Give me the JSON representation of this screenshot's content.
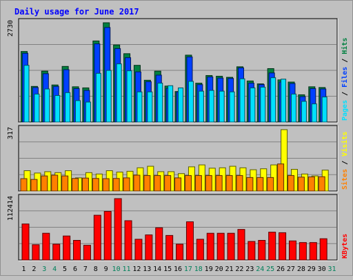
{
  "chart_data": {
    "type": "bar",
    "title": "Daily usage for June 2017",
    "categories": [
      "1",
      "2",
      "3",
      "4",
      "5",
      "6",
      "7",
      "8",
      "9",
      "10",
      "11",
      "12",
      "13",
      "14",
      "15",
      "16",
      "17",
      "18",
      "19",
      "20",
      "21",
      "22",
      "23",
      "24",
      "25",
      "26",
      "27",
      "28",
      "29",
      "30",
      "31"
    ],
    "weekend_days": [
      "3",
      "4",
      "10",
      "11",
      "17",
      "18",
      "24",
      "25",
      "31"
    ],
    "panels": [
      {
        "name": "hits-files-pages",
        "ymax": 2730,
        "ymax_label": "2730",
        "series": [
          {
            "name": "Hits",
            "color": "#008040",
            "values": [
              1940,
              980,
              1400,
              1020,
              1530,
              970,
              940,
              2230,
              2730,
              2120,
              1880,
              1560,
              1150,
              1400,
              990,
              840,
              1840,
              1070,
              1280,
              1260,
              1230,
              1520,
              1130,
              1050,
              1470,
              1160,
              1100,
              750,
              970,
              950,
              null
            ]
          },
          {
            "name": "Files",
            "color": "#0040ff",
            "values": [
              1890,
              950,
              1330,
              980,
              1440,
              920,
              870,
              2150,
              2600,
              2020,
              1770,
              1380,
              1110,
              1290,
              930,
              830,
              1790,
              1030,
              1240,
              1210,
              1200,
              1490,
              1070,
              1030,
              1350,
              1100,
              1060,
              700,
              920,
              910,
              null
            ]
          },
          {
            "name": "Pages",
            "color": "#00e0ff",
            "values": [
              1560,
              770,
              910,
              730,
              810,
              590,
              550,
              1340,
              1420,
              1600,
              1410,
              830,
              830,
              1070,
              1000,
              940,
              1120,
              850,
              870,
              850,
              830,
              1190,
              940,
              960,
              1220,
              1180,
              770,
              570,
              500,
              690,
              null
            ]
          }
        ],
        "legend": [
          "Pages",
          "Files",
          "Hits"
        ]
      },
      {
        "name": "visits-sites",
        "ymax": 317,
        "ymax_label": "317",
        "series": [
          {
            "name": "Visits",
            "color": "#ffff00",
            "values": [
              105,
              93,
              100,
              95,
              105,
              68,
              95,
              88,
              105,
              98,
              102,
              120,
              128,
              100,
              100,
              90,
              125,
              135,
              118,
              120,
              128,
              120,
              110,
              115,
              135,
              317,
              112,
              88,
              78,
              108,
              null
            ]
          },
          {
            "name": "Sites",
            "color": "#ff8000",
            "values": [
              64,
              60,
              78,
              82,
              78,
              65,
              67,
              65,
              64,
              65,
              68,
              82,
              80,
              80,
              80,
              68,
              80,
              80,
              80,
              80,
              80,
              80,
              70,
              70,
              70,
              140,
              80,
              72,
              73,
              74,
              null
            ]
          }
        ],
        "legend": [
          "Sites",
          "Visits"
        ]
      },
      {
        "name": "kbytes",
        "ymax": 112414,
        "ymax_label": "112414",
        "series": [
          {
            "name": "KBytes",
            "color": "#ff0000",
            "values": [
              66000,
              28000,
              49000,
              29000,
              44000,
              36000,
              27000,
              82000,
              89000,
              112414,
              72000,
              38000,
              46000,
              59000,
              45000,
              29000,
              70000,
              38000,
              49000,
              49000,
              49000,
              56000,
              34000,
              36000,
              51000,
              50000,
              35000,
              32000,
              32000,
              39000,
              null
            ]
          }
        ],
        "legend": [
          "KBytes"
        ]
      }
    ]
  }
}
